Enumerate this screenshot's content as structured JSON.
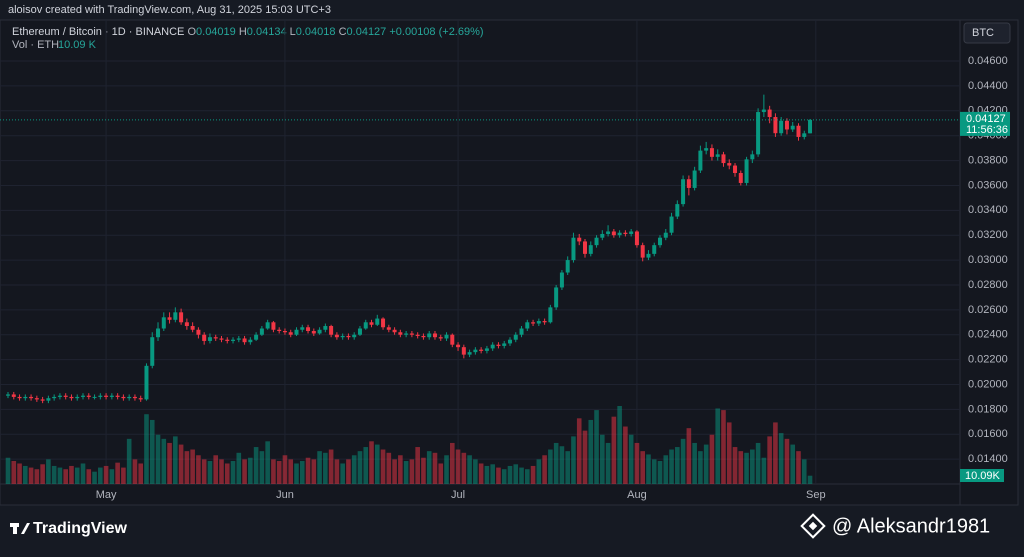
{
  "header": {
    "credit": "aloisov created with TradingView.com, Aug 31, 2025 15:03 UTC+3",
    "currency": "BTC",
    "brand": "TradingView",
    "handle": "@ Aleksandr1981"
  },
  "chart_data": {
    "type": "candlestick",
    "title": "Ethereum / Bitcoin · 1D · BINANCE",
    "ohlc_labels": [
      "O",
      "H",
      "L",
      "C"
    ],
    "change": "+0.00108 (+2.69%)",
    "volume_title": "Vol · ETH",
    "volume_value_label": "10.09 K",
    "volume_tag": "10.09K",
    "countdown": "11:56:36",
    "up_color": "#089981",
    "down_color": "#f23645",
    "grid": true,
    "ylim": [
      0.012,
      0.0493
    ],
    "yticks": [
      {
        "value": 0.014,
        "label": "0.01400"
      },
      {
        "value": 0.016,
        "label": "0.01600"
      },
      {
        "value": 0.018,
        "label": "0.01800"
      },
      {
        "value": 0.02,
        "label": "0.02000"
      },
      {
        "value": 0.022,
        "label": "0.02200"
      },
      {
        "value": 0.024,
        "label": "0.02400"
      },
      {
        "value": 0.026,
        "label": "0.02600"
      },
      {
        "value": 0.028,
        "label": "0.02800"
      },
      {
        "value": 0.03,
        "label": "0.03000"
      },
      {
        "value": 0.032,
        "label": "0.03200"
      },
      {
        "value": 0.034,
        "label": "0.03400"
      },
      {
        "value": 0.036,
        "label": "0.03600"
      },
      {
        "value": 0.038,
        "label": "0.03800"
      },
      {
        "value": 0.04,
        "label": "0.04000"
      },
      {
        "value": 0.042,
        "label": "0.04200"
      },
      {
        "value": 0.044,
        "label": "0.04400"
      },
      {
        "value": 0.046,
        "label": "0.04600"
      }
    ],
    "xlim": [
      -1,
      147
    ],
    "xticks": [
      {
        "value": 17,
        "label": "May"
      },
      {
        "value": 48,
        "label": "Jun"
      },
      {
        "value": 78,
        "label": "Jul"
      },
      {
        "value": 109,
        "label": "Aug"
      },
      {
        "value": 140,
        "label": "Sep"
      }
    ],
    "open": [
      0.0191,
      0.0192,
      0.019,
      0.0189,
      0.019,
      0.0189,
      0.0188,
      0.0187,
      0.0189,
      0.019,
      0.0191,
      0.019,
      0.0189,
      0.019,
      0.0191,
      0.019,
      0.019,
      0.0191,
      0.019,
      0.0191,
      0.019,
      0.0189,
      0.019,
      0.0189,
      0.0188,
      0.0215,
      0.0238,
      0.0245,
      0.0254,
      0.0252,
      0.0258,
      0.025,
      0.0247,
      0.0244,
      0.024,
      0.0235,
      0.0238,
      0.0237,
      0.0236,
      0.0235,
      0.0236,
      0.0237,
      0.0234,
      0.0236,
      0.024,
      0.0245,
      0.025,
      0.0244,
      0.0243,
      0.0242,
      0.024,
      0.0244,
      0.0246,
      0.0243,
      0.0241,
      0.0244,
      0.0247,
      0.024,
      0.0238,
      0.0239,
      0.0238,
      0.024,
      0.0245,
      0.025,
      0.0248,
      0.0253,
      0.0246,
      0.0244,
      0.0242,
      0.024,
      0.0241,
      0.024,
      0.0239,
      0.0238,
      0.0241,
      0.0238,
      0.0237,
      0.024,
      0.0232,
      0.023,
      0.0224,
      0.0226,
      0.0228,
      0.0227,
      0.0229,
      0.0232,
      0.0231,
      0.0233,
      0.0236,
      0.024,
      0.0245,
      0.025,
      0.0249,
      0.0251,
      0.025,
      0.0262,
      0.0278,
      0.029,
      0.03,
      0.0318,
      0.0315,
      0.0305,
      0.0312,
      0.0318,
      0.0321,
      0.0323,
      0.032,
      0.0322,
      0.0321,
      0.0323,
      0.0312,
      0.0302,
      0.0305,
      0.0312,
      0.0318,
      0.0322,
      0.0335,
      0.0345,
      0.0365,
      0.0358,
      0.0372,
      0.0388,
      0.039,
      0.0383,
      0.0385,
      0.0378,
      0.0376,
      0.037,
      0.0362,
      0.0381,
      0.0385,
      0.0419,
      0.0421,
      0.0415,
      0.0402,
      0.0412,
      0.0405,
      0.0408,
      0.0399,
      0.04019
    ],
    "high": [
      0.0194,
      0.0194,
      0.0192,
      0.0192,
      0.0192,
      0.0191,
      0.019,
      0.0191,
      0.0192,
      0.0193,
      0.0193,
      0.0192,
      0.0192,
      0.0193,
      0.0193,
      0.0192,
      0.0193,
      0.0193,
      0.0193,
      0.0193,
      0.0192,
      0.0192,
      0.0192,
      0.0191,
      0.0217,
      0.0242,
      0.025,
      0.0258,
      0.0258,
      0.0262,
      0.0261,
      0.0253,
      0.025,
      0.0246,
      0.0242,
      0.0241,
      0.024,
      0.0239,
      0.0238,
      0.0238,
      0.0239,
      0.0239,
      0.0238,
      0.0242,
      0.0247,
      0.0252,
      0.0251,
      0.0246,
      0.0245,
      0.0244,
      0.0246,
      0.0248,
      0.0248,
      0.0245,
      0.0246,
      0.0249,
      0.0248,
      0.0242,
      0.0241,
      0.0241,
      0.0242,
      0.0247,
      0.0252,
      0.0252,
      0.0256,
      0.0254,
      0.0248,
      0.0246,
      0.0244,
      0.0243,
      0.0243,
      0.0242,
      0.0241,
      0.0243,
      0.0243,
      0.024,
      0.0242,
      0.0241,
      0.0234,
      0.0232,
      0.0228,
      0.023,
      0.023,
      0.0231,
      0.0234,
      0.0234,
      0.0235,
      0.0238,
      0.0242,
      0.0247,
      0.0252,
      0.0252,
      0.0253,
      0.0253,
      0.0264,
      0.028,
      0.0292,
      0.0303,
      0.0322,
      0.0321,
      0.0317,
      0.0315,
      0.032,
      0.0324,
      0.0328,
      0.0325,
      0.0324,
      0.0324,
      0.0325,
      0.0324,
      0.0314,
      0.0308,
      0.0314,
      0.032,
      0.0325,
      0.0338,
      0.0348,
      0.0368,
      0.0368,
      0.0375,
      0.0392,
      0.0395,
      0.0393,
      0.0389,
      0.0387,
      0.0381,
      0.0378,
      0.0372,
      0.0383,
      0.0388,
      0.0422,
      0.0433,
      0.0424,
      0.0418,
      0.0415,
      0.0414,
      0.0411,
      0.041,
      0.0404,
      0.04134
    ],
    "low": [
      0.0189,
      0.0188,
      0.0187,
      0.0187,
      0.0187,
      0.0186,
      0.0185,
      0.0185,
      0.0187,
      0.0188,
      0.0188,
      0.0187,
      0.0187,
      0.0188,
      0.0188,
      0.0188,
      0.0188,
      0.0188,
      0.0188,
      0.0188,
      0.0187,
      0.0187,
      0.0187,
      0.0186,
      0.0187,
      0.0213,
      0.0235,
      0.0243,
      0.0249,
      0.025,
      0.0248,
      0.0244,
      0.0242,
      0.0237,
      0.0232,
      0.0233,
      0.0235,
      0.0234,
      0.0233,
      0.0233,
      0.0234,
      0.0232,
      0.0232,
      0.0235,
      0.0239,
      0.0244,
      0.0242,
      0.0241,
      0.024,
      0.0238,
      0.0239,
      0.0242,
      0.0241,
      0.0239,
      0.024,
      0.0242,
      0.0238,
      0.0236,
      0.0236,
      0.0236,
      0.0236,
      0.0239,
      0.0244,
      0.0246,
      0.0247,
      0.0244,
      0.0242,
      0.024,
      0.0238,
      0.0238,
      0.0238,
      0.0237,
      0.0236,
      0.0236,
      0.0236,
      0.0235,
      0.0235,
      0.023,
      0.0227,
      0.0221,
      0.0222,
      0.0224,
      0.0225,
      0.0225,
      0.0227,
      0.0229,
      0.0229,
      0.0231,
      0.0234,
      0.0238,
      0.0243,
      0.0247,
      0.0247,
      0.0248,
      0.0249,
      0.026,
      0.0276,
      0.0288,
      0.0298,
      0.0312,
      0.0302,
      0.0303,
      0.031,
      0.0316,
      0.0319,
      0.0318,
      0.0318,
      0.0319,
      0.0319,
      0.031,
      0.0299,
      0.03,
      0.0303,
      0.031,
      0.0316,
      0.032,
      0.0333,
      0.0343,
      0.0352,
      0.0356,
      0.037,
      0.0385,
      0.038,
      0.038,
      0.0375,
      0.0373,
      0.0367,
      0.036,
      0.036,
      0.0378,
      0.0383,
      0.0415,
      0.041,
      0.0399,
      0.04,
      0.0401,
      0.0403,
      0.0396,
      0.0397,
      0.04018
    ],
    "close": [
      0.0192,
      0.019,
      0.0189,
      0.019,
      0.0189,
      0.0188,
      0.0187,
      0.0189,
      0.019,
      0.0191,
      0.019,
      0.0189,
      0.019,
      0.0191,
      0.019,
      0.019,
      0.0191,
      0.019,
      0.0191,
      0.019,
      0.0189,
      0.019,
      0.0189,
      0.0188,
      0.0215,
      0.0238,
      0.0245,
      0.0254,
      0.0252,
      0.0258,
      0.025,
      0.0247,
      0.0244,
      0.024,
      0.0235,
      0.0238,
      0.0237,
      0.0236,
      0.0235,
      0.0236,
      0.0237,
      0.0234,
      0.0236,
      0.024,
      0.0245,
      0.025,
      0.0244,
      0.0243,
      0.0242,
      0.024,
      0.0244,
      0.0246,
      0.0243,
      0.0241,
      0.0244,
      0.0247,
      0.024,
      0.0238,
      0.0239,
      0.0238,
      0.024,
      0.0245,
      0.025,
      0.0248,
      0.0253,
      0.0246,
      0.0244,
      0.0242,
      0.024,
      0.0241,
      0.024,
      0.0239,
      0.0238,
      0.0241,
      0.0238,
      0.0237,
      0.024,
      0.0232,
      0.023,
      0.0224,
      0.0226,
      0.0228,
      0.0227,
      0.0229,
      0.0232,
      0.0231,
      0.0233,
      0.0236,
      0.024,
      0.0245,
      0.025,
      0.0249,
      0.0251,
      0.025,
      0.0262,
      0.0278,
      0.029,
      0.03,
      0.0318,
      0.0315,
      0.0305,
      0.0312,
      0.0318,
      0.0321,
      0.0323,
      0.032,
      0.0322,
      0.0321,
      0.0323,
      0.0312,
      0.0302,
      0.0305,
      0.0312,
      0.0318,
      0.0322,
      0.0335,
      0.0345,
      0.0365,
      0.0358,
      0.0372,
      0.0388,
      0.039,
      0.0383,
      0.0385,
      0.0378,
      0.0376,
      0.037,
      0.0362,
      0.0381,
      0.0385,
      0.0419,
      0.0421,
      0.0415,
      0.0402,
      0.0412,
      0.0405,
      0.0408,
      0.0399,
      0.04019,
      0.04127
    ],
    "volume": [
      32,
      28,
      25,
      22,
      20,
      18,
      24,
      30,
      22,
      20,
      18,
      22,
      20,
      25,
      18,
      15,
      20,
      22,
      18,
      26,
      20,
      55,
      30,
      25,
      85,
      78,
      60,
      55,
      50,
      58,
      48,
      40,
      42,
      35,
      30,
      28,
      35,
      30,
      25,
      28,
      38,
      30,
      32,
      45,
      40,
      52,
      30,
      28,
      35,
      30,
      25,
      28,
      32,
      30,
      40,
      38,
      42,
      30,
      25,
      30,
      35,
      40,
      45,
      52,
      48,
      42,
      38,
      30,
      35,
      28,
      30,
      45,
      32,
      40,
      38,
      25,
      35,
      50,
      42,
      38,
      35,
      30,
      25,
      22,
      24,
      20,
      18,
      22,
      24,
      20,
      18,
      22,
      30,
      35,
      42,
      50,
      46,
      40,
      58,
      80,
      65,
      78,
      90,
      60,
      50,
      82,
      95,
      70,
      60,
      50,
      40,
      36,
      30,
      28,
      35,
      42,
      45,
      55,
      68,
      50,
      40,
      48,
      60,
      92,
      90,
      75,
      45,
      40,
      38,
      42,
      50,
      32,
      58,
      75,
      62,
      55,
      48,
      40,
      30,
      10.09
    ]
  }
}
